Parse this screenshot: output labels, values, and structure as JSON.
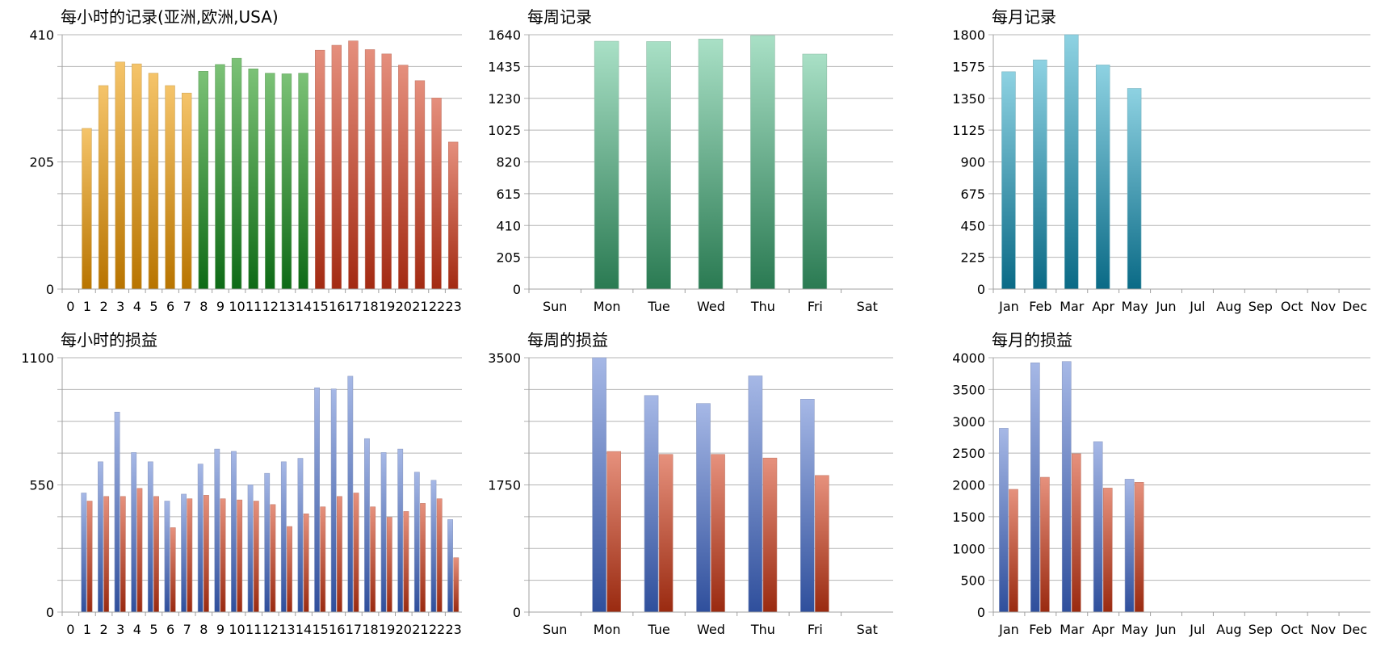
{
  "chart_data": [
    {
      "type": "bar",
      "title": "每小时的记录(亚洲,欧洲,USA)",
      "ylim": [
        0,
        410
      ],
      "yticks": [
        "0",
        "205",
        "410"
      ],
      "categories": [
        "0",
        "1",
        "2",
        "3",
        "4",
        "5",
        "6",
        "7",
        "8",
        "9",
        "10",
        "11",
        "12",
        "13",
        "14",
        "15",
        "16",
        "17",
        "18",
        "19",
        "20",
        "21",
        "22",
        "23"
      ],
      "series": [
        {
          "values": [
            0,
            259,
            328,
            366,
            363,
            348,
            328,
            316,
            351,
            362,
            372,
            355,
            348,
            347,
            348,
            385,
            393,
            400,
            386,
            379,
            361,
            336,
            308,
            237
          ]
        }
      ],
      "bar_colors": [
        "#f5c46a",
        "#f5c46a",
        "#f5c46a",
        "#f5c46a",
        "#f5c46a",
        "#f5c46a",
        "#f5c46a",
        "#f5c46a",
        "#7cc277",
        "#7cc277",
        "#7cc277",
        "#7cc277",
        "#7cc277",
        "#7cc277",
        "#7cc277",
        "#e58f7d",
        "#e58f7d",
        "#e58f7d",
        "#e58f7d",
        "#e58f7d",
        "#e58f7d",
        "#e58f7d",
        "#e58f7d",
        "#e58f7d"
      ],
      "grid": true
    },
    {
      "type": "bar",
      "title": "每周记录",
      "ylim": [
        0,
        1640
      ],
      "yticks": [
        "0",
        "205",
        "410",
        "615",
        "820",
        "1025",
        "1230",
        "1435",
        "1640"
      ],
      "categories": [
        "Sun",
        "Mon",
        "Tue",
        "Wed",
        "Thu",
        "Fri",
        "Sat"
      ],
      "series": [
        {
          "values": [
            0,
            1598,
            1596,
            1612,
            1635,
            1515,
            0
          ]
        }
      ],
      "colors": {
        "top": "#a9e0c6",
        "bottom": "#2a7a52"
      },
      "grid": true
    },
    {
      "type": "bar",
      "title": "每月记录",
      "ylim": [
        0,
        1800
      ],
      "yticks": [
        "0",
        "225",
        "450",
        "675",
        "900",
        "1125",
        "1350",
        "1575",
        "1800"
      ],
      "categories": [
        "Jan",
        "Feb",
        "Mar",
        "Apr",
        "May",
        "Jun",
        "Jul",
        "Aug",
        "Sep",
        "Oct",
        "Nov",
        "Dec"
      ],
      "series": [
        {
          "values": [
            1538,
            1622,
            1800,
            1586,
            1420,
            0,
            0,
            0,
            0,
            0,
            0,
            0
          ]
        }
      ],
      "colors": {
        "top": "#8ed2e2",
        "bottom": "#0a6a86"
      },
      "grid": true
    },
    {
      "type": "bar",
      "title": "每小时的损益",
      "ylim": [
        0,
        1100
      ],
      "yticks": [
        "0",
        "550",
        "1100"
      ],
      "categories": [
        "0",
        "1",
        "2",
        "3",
        "4",
        "5",
        "6",
        "7",
        "8",
        "9",
        "10",
        "11",
        "12",
        "13",
        "14",
        "15",
        "16",
        "17",
        "18",
        "19",
        "20",
        "21",
        "22",
        "23"
      ],
      "series": [
        {
          "values": [
            0,
            515,
            650,
            865,
            690,
            650,
            480,
            510,
            640,
            705,
            695,
            550,
            600,
            650,
            665,
            970,
            965,
            1020,
            750,
            690,
            705,
            605,
            570,
            400
          ]
        },
        {
          "values": [
            0,
            480,
            500,
            500,
            535,
            500,
            365,
            490,
            505,
            490,
            485,
            480,
            465,
            370,
            425,
            455,
            500,
            515,
            455,
            410,
            435,
            470,
            490,
            235
          ]
        }
      ],
      "colors": [
        {
          "top": "#a6b8e6",
          "bottom": "#2f4f9c"
        },
        {
          "top": "#e6917d",
          "bottom": "#9a2a10"
        }
      ],
      "grid": true
    },
    {
      "type": "bar",
      "title": "每周的损益",
      "ylim": [
        0,
        3500
      ],
      "yticks": [
        "0",
        "1750",
        "3500"
      ],
      "categories": [
        "Sun",
        "Mon",
        "Tue",
        "Wed",
        "Thu",
        "Fri",
        "Sat"
      ],
      "series": [
        {
          "values": [
            0,
            3500,
            2980,
            2870,
            3250,
            2930,
            0
          ]
        },
        {
          "values": [
            0,
            2210,
            2170,
            2170,
            2120,
            1880,
            0
          ]
        }
      ],
      "colors": [
        {
          "top": "#a6b8e6",
          "bottom": "#2f4f9c"
        },
        {
          "top": "#e6917d",
          "bottom": "#9a2a10"
        }
      ],
      "grid": true
    },
    {
      "type": "bar",
      "title": "每月的损益",
      "ylim": [
        0,
        4000
      ],
      "yticks": [
        "0",
        "500",
        "1000",
        "1500",
        "2000",
        "2500",
        "3000",
        "3500",
        "4000"
      ],
      "categories": [
        "Jan",
        "Feb",
        "Mar",
        "Apr",
        "May",
        "Jun",
        "Jul",
        "Aug",
        "Sep",
        "Oct",
        "Nov",
        "Dec"
      ],
      "series": [
        {
          "values": [
            2890,
            3920,
            3940,
            2680,
            2090,
            0,
            0,
            0,
            0,
            0,
            0,
            0
          ]
        },
        {
          "values": [
            1930,
            2120,
            2490,
            1950,
            2040,
            0,
            0,
            0,
            0,
            0,
            0,
            0
          ]
        }
      ],
      "colors": [
        {
          "top": "#a6b8e6",
          "bottom": "#2f4f9c"
        },
        {
          "top": "#e6917d",
          "bottom": "#9a2a10"
        }
      ],
      "grid": true
    }
  ]
}
